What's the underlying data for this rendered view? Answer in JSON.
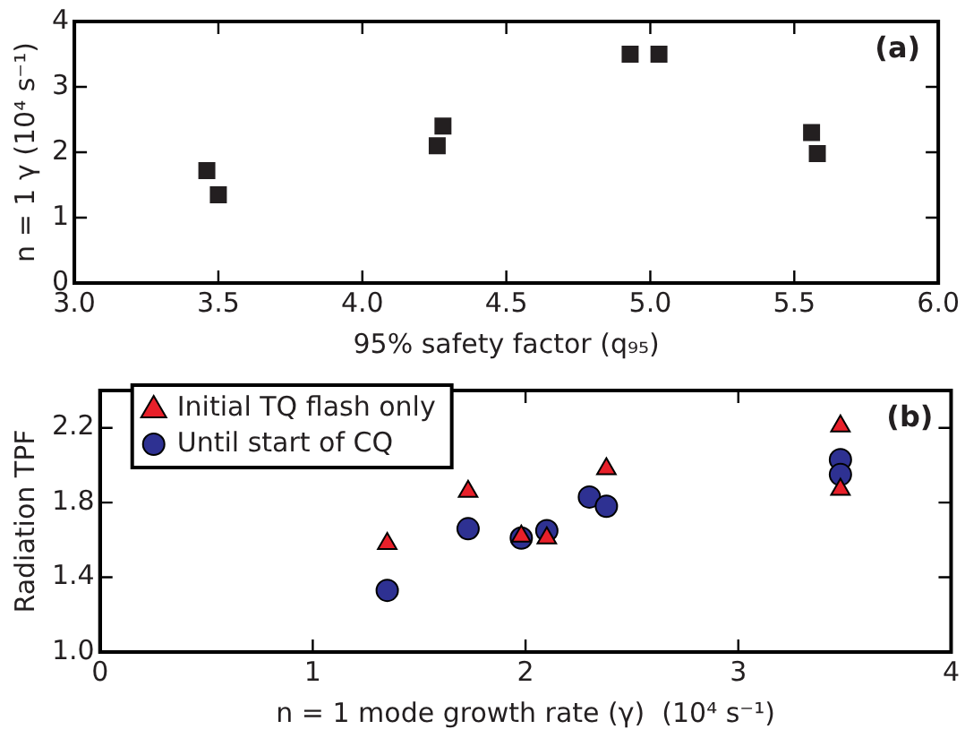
{
  "chart_data": [
    {
      "type": "scatter",
      "xlabel": "95% safety factor (q₉₅)",
      "ylabel": "n = 1 γ (10⁴ s⁻¹)",
      "annotations": [
        "(a)"
      ],
      "series": [
        {
          "color": "#231f20",
          "marker": "square",
          "x": [
            3.46,
            3.5,
            4.26,
            4.28,
            4.93,
            5.03,
            5.56,
            5.58
          ],
          "values": [
            1.72,
            1.35,
            2.1,
            2.4,
            3.5,
            3.5,
            2.3,
            1.98
          ]
        }
      ],
      "xlim": [
        3.0,
        6.0
      ],
      "xticks": [
        {
          "value": 3.0,
          "label": "3.0"
        },
        3.5,
        {
          "value": 4.0,
          "label": "4.0"
        },
        4.5,
        {
          "value": 5.0,
          "label": "5.0"
        },
        5.5,
        {
          "value": 6.0,
          "label": "6.0"
        }
      ],
      "ylim": [
        0,
        4
      ],
      "yticks": [
        0,
        1,
        2,
        3,
        4
      ],
      "grid": false,
      "legend": false
    },
    {
      "type": "scatter",
      "xlabel": "n = 1 mode growth rate (γ)  (10⁴ s⁻¹)",
      "ylabel": "Radiation TPF",
      "annotations": [
        "(b)"
      ],
      "series": [
        {
          "name": "Initial TQ flash only",
          "color": "#e8202a",
          "marker": "triangle",
          "x": [
            1.35,
            1.73,
            1.98,
            2.1,
            2.38,
            3.48,
            3.48
          ],
          "values": [
            1.58,
            1.86,
            1.62,
            1.61,
            1.98,
            2.21,
            1.87
          ]
        },
        {
          "name": "Until start of CQ",
          "color": "#2e3192",
          "marker": "circle",
          "x": [
            1.35,
            1.73,
            1.98,
            2.1,
            2.3,
            2.38,
            3.48,
            3.48
          ],
          "values": [
            1.33,
            1.66,
            1.61,
            1.65,
            1.83,
            1.78,
            2.03,
            1.95
          ]
        }
      ],
      "xlim": [
        0,
        4
      ],
      "xticks": [
        0,
        1,
        2,
        3,
        4
      ],
      "ylim": [
        1.0,
        2.4
      ],
      "yticks": [
        {
          "value": 1.0,
          "label": "1.0"
        },
        1.4,
        1.8,
        2.2
      ],
      "grid": false,
      "legend": "top left"
    }
  ]
}
